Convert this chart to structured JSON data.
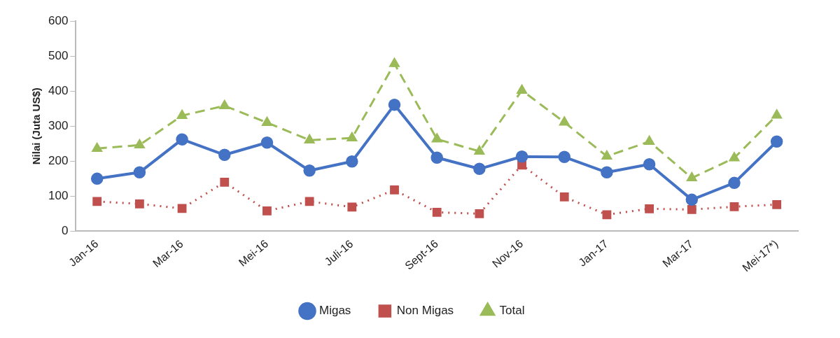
{
  "chart_data": {
    "type": "line",
    "ylabel": "Nilai (Juta US$)",
    "categories": [
      "Jan-16",
      null,
      "Mar-16",
      null,
      "Mei-16",
      null,
      "Juli-16",
      null,
      "Sept-16",
      null,
      "Nov-16",
      null,
      "Jan-17",
      null,
      "Mar-17",
      null,
      "Mei-17*)"
    ],
    "series": [
      {
        "name": "Migas",
        "color": "#4472c4",
        "marker": "circle",
        "line_style": "solid",
        "values": [
          150,
          168,
          262,
          218,
          253,
          173,
          199,
          361,
          210,
          178,
          213,
          212,
          168,
          191,
          90,
          138,
          256
        ]
      },
      {
        "name": "Non Migas",
        "color": "#c0504d",
        "marker": "square",
        "line_style": "dotted",
        "values": [
          85,
          78,
          65,
          140,
          58,
          85,
          69,
          118,
          54,
          50,
          189,
          98,
          47,
          64,
          62,
          70,
          76
        ]
      },
      {
        "name": "Total",
        "color": "#9bbb59",
        "marker": "triangle",
        "line_style": "dashed",
        "values": [
          236,
          246,
          330,
          358,
          310,
          260,
          266,
          478,
          263,
          228,
          402,
          311,
          214,
          256,
          152,
          209,
          331
        ]
      }
    ],
    "ylim": [
      0,
      600
    ],
    "yticks": [
      0,
      100,
      200,
      300,
      400,
      500,
      600
    ],
    "grid": false,
    "legend": "bottom"
  }
}
